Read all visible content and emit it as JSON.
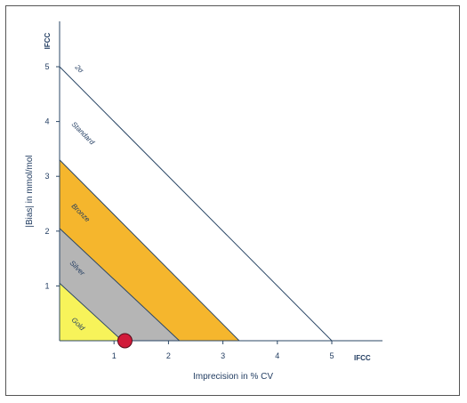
{
  "chart_data": {
    "type": "area",
    "xlabel": "Imprecision in % CV",
    "ylabel": "|Bias| in mmol/mol",
    "x_unit_label": "IFCC",
    "y_unit_label": "IFCC",
    "xlim": [
      0,
      5.9
    ],
    "ylim": [
      0,
      5.9
    ],
    "x_ticks": [
      "1",
      "2",
      "3",
      "4",
      "5"
    ],
    "y_ticks": [
      "1",
      "2",
      "3",
      "4",
      "5"
    ],
    "grid": false,
    "series": [
      {
        "name": "Gold",
        "intercept_x": 1.15,
        "intercept_y": 1.05,
        "color": "#f7f35a"
      },
      {
        "name": "Silver",
        "intercept_x": 2.2,
        "intercept_y": 2.05,
        "color": "#b5b5b5"
      },
      {
        "name": "Bronze",
        "intercept_x": 3.3,
        "intercept_y": 3.3,
        "color": "#f5b62d"
      },
      {
        "name": "Standard",
        "intercept_x": 5.0,
        "intercept_y": 5.0,
        "color": "#ffffff"
      }
    ],
    "line_label": "2σ",
    "marker": {
      "x": 1.2,
      "y": 0,
      "color": "#d11a3a"
    }
  }
}
